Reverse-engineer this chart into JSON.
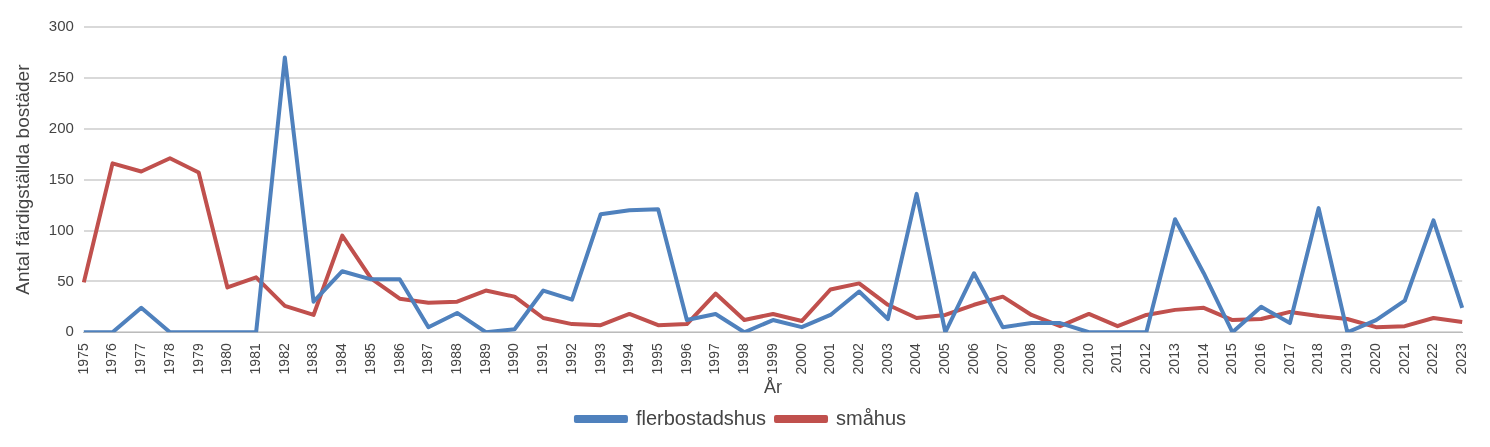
{
  "chart_data": {
    "type": "line",
    "xlabel": "År",
    "ylabel": "Antal färdigställda bostäder",
    "categories": [
      "1975",
      "1976",
      "1977",
      "1978",
      "1979",
      "1980",
      "1981",
      "1982",
      "1983",
      "1984",
      "1985",
      "1986",
      "1987",
      "1988",
      "1989",
      "1990",
      "1991",
      "1992",
      "1993",
      "1994",
      "1995",
      "1996",
      "1997",
      "1998",
      "1999",
      "2000",
      "2001",
      "2002",
      "2003",
      "2004",
      "2005",
      "2006",
      "2007",
      "2008",
      "2009",
      "2010",
      "2011",
      "2012",
      "2013",
      "2014",
      "2015",
      "2016",
      "2017",
      "2018",
      "2019",
      "2020",
      "2021",
      "2022",
      "2023"
    ],
    "series": [
      {
        "name": "flerbostadshus",
        "color": "#4f81bd",
        "values": [
          0,
          0,
          24,
          0,
          0,
          0,
          0,
          270,
          30,
          60,
          52,
          52,
          5,
          19,
          0,
          3,
          41,
          32,
          116,
          120,
          121,
          12,
          18,
          0,
          12,
          5,
          17,
          40,
          13,
          136,
          0,
          58,
          5,
          9,
          9,
          0,
          0,
          0,
          111,
          58,
          0,
          25,
          9,
          122,
          0,
          12,
          31,
          110,
          24
        ]
      },
      {
        "name": "småhus",
        "color": "#c0504d",
        "values": [
          49,
          166,
          158,
          171,
          157,
          44,
          54,
          26,
          17,
          95,
          53,
          33,
          29,
          30,
          41,
          35,
          14,
          8,
          7,
          18,
          7,
          8,
          38,
          12,
          18,
          11,
          42,
          48,
          27,
          14,
          17,
          27,
          35,
          17,
          6,
          18,
          6,
          17,
          22,
          24,
          12,
          13,
          20,
          16,
          13,
          5,
          6,
          14,
          10
        ]
      }
    ],
    "ylim": [
      0,
      300
    ],
    "yticks": [
      0,
      50,
      100,
      150,
      200,
      250,
      300
    ],
    "grid": "y",
    "legend": "bottom",
    "marker": "none",
    "line_style": "solid"
  }
}
